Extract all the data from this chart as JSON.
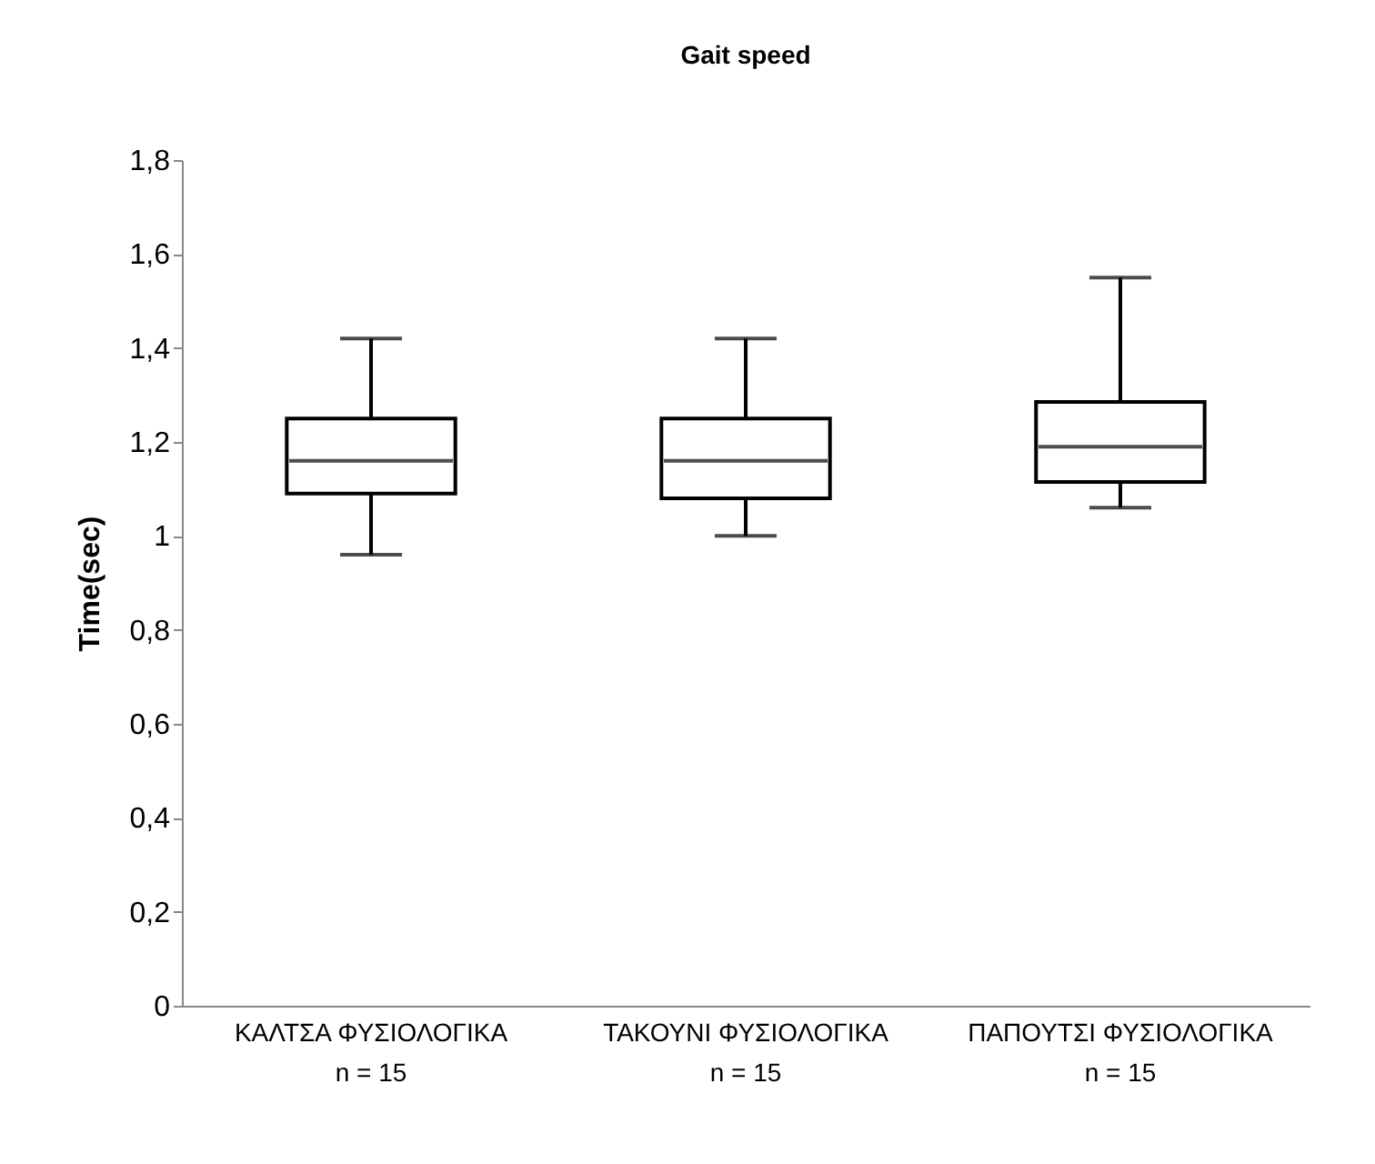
{
  "chart_data": {
    "type": "box",
    "title": "Gait speed",
    "ylabel": "Time(sec)",
    "categories": [
      "ΚΑΛΤΣΑ ΦΥΣΙΟΛΟΓΙΚΑ\nn = 15",
      "ΤΑΚΟΥΝΙ ΦΥΣΙΟΛΟΓΙΚΑ\nn = 15",
      "ΠΑΠΟΥΤΣΙ ΦΥΣΙΟΛΟΓΙΚΑ\nn = 15"
    ],
    "boxes": [
      {
        "low": 0.96,
        "q1": 1.09,
        "median": 1.16,
        "q3": 1.25,
        "high": 1.42
      },
      {
        "low": 1.0,
        "q1": 1.08,
        "median": 1.16,
        "q3": 1.25,
        "high": 1.42
      },
      {
        "low": 1.06,
        "q1": 1.115,
        "median": 1.19,
        "q3": 1.285,
        "high": 1.55
      }
    ],
    "ylim": [
      0,
      1.8
    ],
    "yticks": [
      0,
      {
        "value": 0.2,
        "label": "0,2"
      },
      {
        "value": 0.4,
        "label": "0,4"
      },
      {
        "value": 0.6,
        "label": "0,6"
      },
      {
        "value": 0.8,
        "label": "0,8"
      },
      1,
      {
        "value": 1.2,
        "label": "1,2"
      },
      {
        "value": 1.4,
        "label": "1,4"
      },
      {
        "value": 1.6,
        "label": "1,6"
      },
      {
        "value": 1.8,
        "label": "1,8"
      }
    ],
    "grid": false
  }
}
